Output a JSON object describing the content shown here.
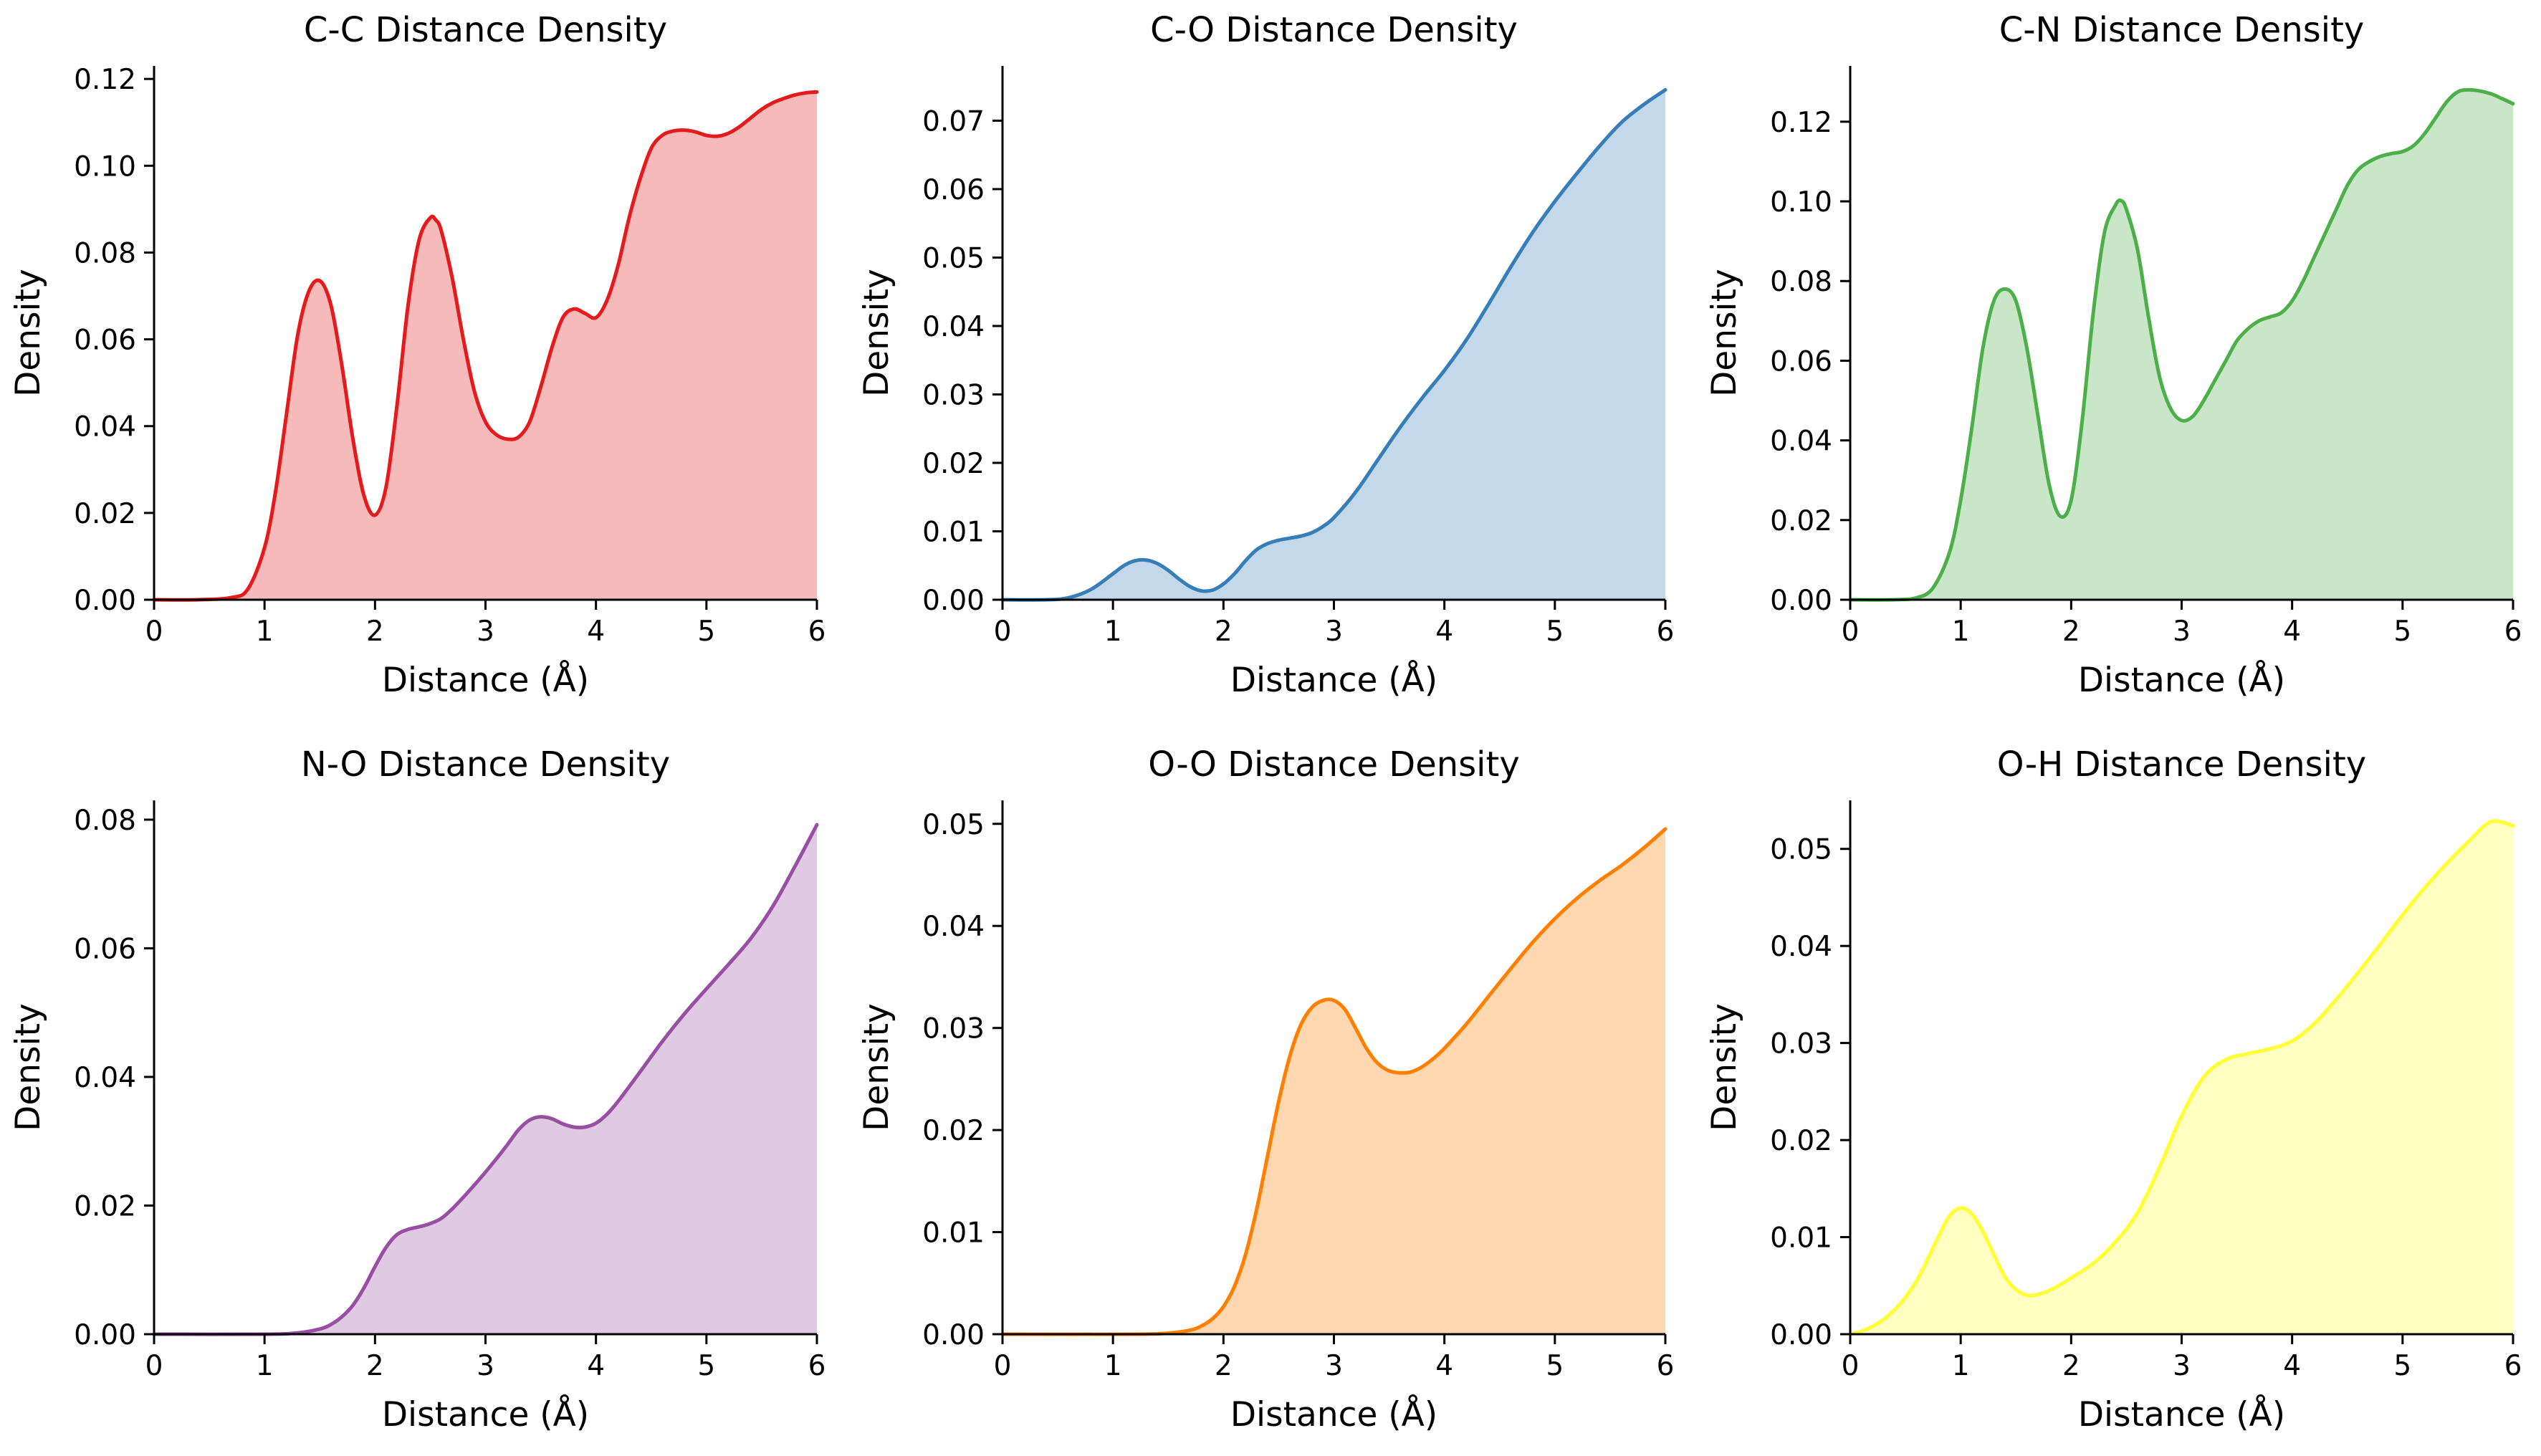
{
  "chart_data": [
    {
      "type": "area",
      "title": "C-C Distance Density",
      "xlabel": "Distance (Å)",
      "ylabel": "Density",
      "xlim": [
        0,
        6
      ],
      "ylim": [
        0,
        0.123
      ],
      "xticks": [
        "0",
        "1",
        "2",
        "3",
        "4",
        "5",
        "6"
      ],
      "yticks": [
        "0.00",
        "0.02",
        "0.04",
        "0.06",
        "0.08",
        "0.10",
        "0.12"
      ],
      "color": "#e41a1c",
      "x": [
        0,
        0.4,
        0.7,
        0.85,
        1.0,
        1.1,
        1.2,
        1.3,
        1.4,
        1.5,
        1.6,
        1.7,
        1.8,
        1.9,
        2.0,
        2.1,
        2.2,
        2.3,
        2.4,
        2.5,
        2.55,
        2.6,
        2.7,
        2.8,
        2.9,
        3.0,
        3.1,
        3.2,
        3.3,
        3.4,
        3.5,
        3.6,
        3.7,
        3.8,
        3.9,
        4.0,
        4.1,
        4.2,
        4.3,
        4.4,
        4.5,
        4.6,
        4.7,
        4.8,
        4.9,
        5.0,
        5.1,
        5.2,
        5.3,
        5.4,
        5.5,
        5.6,
        5.7,
        5.8,
        5.9,
        6.0
      ],
      "y": [
        0,
        0,
        0.0005,
        0.0025,
        0.012,
        0.025,
        0.043,
        0.061,
        0.071,
        0.0735,
        0.068,
        0.054,
        0.037,
        0.024,
        0.0195,
        0.026,
        0.045,
        0.068,
        0.083,
        0.088,
        0.0875,
        0.085,
        0.074,
        0.06,
        0.048,
        0.041,
        0.038,
        0.037,
        0.0375,
        0.041,
        0.049,
        0.058,
        0.065,
        0.067,
        0.066,
        0.065,
        0.069,
        0.077,
        0.088,
        0.097,
        0.104,
        0.107,
        0.108,
        0.1082,
        0.1078,
        0.107,
        0.1068,
        0.1075,
        0.109,
        0.111,
        0.113,
        0.1145,
        0.1155,
        0.1163,
        0.1168,
        0.117
      ]
    },
    {
      "type": "area",
      "title": "C-O Distance Density",
      "xlabel": "Distance (Å)",
      "ylabel": "Density",
      "xlim": [
        0,
        6
      ],
      "ylim": [
        0,
        0.078
      ],
      "xticks": [
        "0",
        "1",
        "2",
        "3",
        "4",
        "5",
        "6"
      ],
      "yticks": [
        "0.00",
        "0.01",
        "0.02",
        "0.03",
        "0.04",
        "0.05",
        "0.06",
        "0.07"
      ],
      "color": "#377eb8",
      "x": [
        0,
        0.4,
        0.6,
        0.8,
        1.0,
        1.1,
        1.2,
        1.3,
        1.4,
        1.5,
        1.6,
        1.7,
        1.8,
        1.9,
        2.0,
        2.1,
        2.2,
        2.3,
        2.4,
        2.5,
        2.6,
        2.7,
        2.8,
        2.9,
        3.0,
        3.2,
        3.4,
        3.6,
        3.8,
        4.0,
        4.2,
        4.4,
        4.6,
        4.8,
        5.0,
        5.2,
        5.4,
        5.6,
        5.8,
        6.0
      ],
      "y": [
        0,
        0,
        0.0003,
        0.0015,
        0.0038,
        0.005,
        0.0057,
        0.0058,
        0.0053,
        0.0043,
        0.003,
        0.0019,
        0.0013,
        0.0014,
        0.0023,
        0.0038,
        0.0057,
        0.0073,
        0.0082,
        0.0087,
        0.009,
        0.0093,
        0.0098,
        0.0107,
        0.012,
        0.0158,
        0.0205,
        0.0252,
        0.0295,
        0.0335,
        0.038,
        0.0432,
        0.0486,
        0.0537,
        0.0582,
        0.0623,
        0.0662,
        0.0697,
        0.0723,
        0.0745
      ]
    },
    {
      "type": "area",
      "title": "C-N Distance Density",
      "xlabel": "Distance (Å)",
      "ylabel": "Density",
      "xlim": [
        0,
        6
      ],
      "ylim": [
        0,
        0.134
      ],
      "xticks": [
        "0",
        "1",
        "2",
        "3",
        "4",
        "5",
        "6"
      ],
      "yticks": [
        "0.00",
        "0.02",
        "0.04",
        "0.06",
        "0.08",
        "0.10",
        "0.12"
      ],
      "color": "#4daf4a",
      "x": [
        0,
        0.4,
        0.6,
        0.75,
        0.9,
        1.0,
        1.1,
        1.2,
        1.3,
        1.4,
        1.5,
        1.6,
        1.7,
        1.8,
        1.9,
        2.0,
        2.1,
        2.2,
        2.3,
        2.4,
        2.45,
        2.5,
        2.6,
        2.7,
        2.8,
        2.9,
        3.0,
        3.1,
        3.2,
        3.3,
        3.4,
        3.5,
        3.6,
        3.7,
        3.8,
        3.9,
        4.0,
        4.1,
        4.2,
        4.3,
        4.4,
        4.5,
        4.6,
        4.7,
        4.8,
        4.9,
        5.0,
        5.1,
        5.2,
        5.3,
        5.4,
        5.5,
        5.6,
        5.7,
        5.8,
        5.9,
        6.0
      ],
      "y": [
        0,
        0,
        0.0005,
        0.003,
        0.012,
        0.025,
        0.043,
        0.063,
        0.075,
        0.078,
        0.075,
        0.063,
        0.046,
        0.029,
        0.021,
        0.025,
        0.045,
        0.072,
        0.092,
        0.099,
        0.1002,
        0.098,
        0.088,
        0.071,
        0.056,
        0.048,
        0.045,
        0.046,
        0.05,
        0.055,
        0.06,
        0.065,
        0.068,
        0.07,
        0.071,
        0.072,
        0.075,
        0.08,
        0.086,
        0.092,
        0.098,
        0.104,
        0.108,
        0.11,
        0.1113,
        0.112,
        0.1125,
        0.114,
        0.117,
        0.121,
        0.125,
        0.1275,
        0.128,
        0.1277,
        0.127,
        0.1258,
        0.1245
      ]
    },
    {
      "type": "area",
      "title": "N-O Distance Density",
      "xlabel": "Distance (Å)",
      "ylabel": "Density",
      "xlim": [
        0,
        6
      ],
      "ylim": [
        0,
        0.083
      ],
      "xticks": [
        "0",
        "1",
        "2",
        "3",
        "4",
        "5",
        "6"
      ],
      "yticks": [
        "0.00",
        "0.02",
        "0.04",
        "0.06",
        "0.08"
      ],
      "color": "#984ea3",
      "x": [
        0,
        1.0,
        1.3,
        1.5,
        1.6,
        1.7,
        1.8,
        1.9,
        2.0,
        2.1,
        2.2,
        2.3,
        2.4,
        2.5,
        2.6,
        2.7,
        2.8,
        2.9,
        3.0,
        3.1,
        3.2,
        3.3,
        3.4,
        3.5,
        3.6,
        3.7,
        3.8,
        3.9,
        4.0,
        4.1,
        4.2,
        4.4,
        4.6,
        4.8,
        5.0,
        5.2,
        5.4,
        5.6,
        5.8,
        6.0
      ],
      "y": [
        0,
        0,
        0.0002,
        0.0008,
        0.0015,
        0.0027,
        0.0045,
        0.0072,
        0.0105,
        0.0135,
        0.0155,
        0.0163,
        0.0167,
        0.0172,
        0.018,
        0.0195,
        0.0213,
        0.0232,
        0.0252,
        0.0273,
        0.0295,
        0.0318,
        0.0333,
        0.0338,
        0.0335,
        0.0327,
        0.0322,
        0.0322,
        0.0328,
        0.0342,
        0.0362,
        0.0408,
        0.0455,
        0.0498,
        0.0537,
        0.0575,
        0.0615,
        0.0665,
        0.0727,
        0.0792
      ]
    },
    {
      "type": "area",
      "title": "O-O Distance Density",
      "xlabel": "Distance (Å)",
      "ylabel": "Density",
      "xlim": [
        0,
        6
      ],
      "ylim": [
        0,
        0.0523
      ],
      "xticks": [
        "0",
        "1",
        "2",
        "3",
        "4",
        "5",
        "6"
      ],
      "yticks": [
        "0.00",
        "0.01",
        "0.02",
        "0.03",
        "0.04",
        "0.05"
      ],
      "color": "#ff7f00",
      "x": [
        0,
        1.2,
        1.5,
        1.7,
        1.8,
        1.9,
        2.0,
        2.1,
        2.2,
        2.3,
        2.4,
        2.5,
        2.6,
        2.7,
        2.8,
        2.9,
        3.0,
        3.1,
        3.2,
        3.3,
        3.4,
        3.5,
        3.6,
        3.7,
        3.8,
        3.9,
        4.0,
        4.2,
        4.4,
        4.6,
        4.8,
        5.0,
        5.2,
        5.4,
        5.6,
        5.8,
        6.0
      ],
      "y": [
        0,
        0,
        0.0001,
        0.0004,
        0.0008,
        0.0015,
        0.0027,
        0.0047,
        0.0078,
        0.0122,
        0.0175,
        0.0228,
        0.0272,
        0.0303,
        0.032,
        0.0327,
        0.0327,
        0.0318,
        0.0299,
        0.0279,
        0.0265,
        0.0258,
        0.0256,
        0.0257,
        0.0262,
        0.027,
        0.028,
        0.0304,
        0.0331,
        0.0358,
        0.0384,
        0.0407,
        0.0427,
        0.0444,
        0.0459,
        0.0476,
        0.0495
      ]
    },
    {
      "type": "area",
      "title": "O-H Distance Density",
      "xlabel": "Distance (Å)",
      "ylabel": "Density",
      "xlim": [
        0,
        6
      ],
      "ylim": [
        0,
        0.055
      ],
      "xticks": [
        "0",
        "1",
        "2",
        "3",
        "4",
        "5",
        "6"
      ],
      "yticks": [
        "0.00",
        "0.01",
        "0.02",
        "0.03",
        "0.04",
        "0.05"
      ],
      "color": "#ffff33",
      "x": [
        0,
        0.1,
        0.2,
        0.3,
        0.4,
        0.5,
        0.6,
        0.7,
        0.8,
        0.9,
        1.0,
        1.1,
        1.2,
        1.3,
        1.4,
        1.5,
        1.6,
        1.7,
        1.8,
        1.9,
        2.0,
        2.2,
        2.4,
        2.6,
        2.8,
        3.0,
        3.2,
        3.4,
        3.6,
        3.8,
        4.0,
        4.2,
        4.4,
        4.6,
        4.8,
        5.0,
        5.2,
        5.4,
        5.6,
        5.8,
        6.0
      ],
      "y": [
        0,
        0.0003,
        0.0008,
        0.0015,
        0.0025,
        0.0038,
        0.0055,
        0.0077,
        0.0101,
        0.0122,
        0.013,
        0.0124,
        0.0106,
        0.0082,
        0.0059,
        0.0046,
        0.004,
        0.0041,
        0.0045,
        0.0051,
        0.0058,
        0.0073,
        0.0095,
        0.0125,
        0.0172,
        0.0225,
        0.0265,
        0.0283,
        0.0289,
        0.0294,
        0.0302,
        0.032,
        0.0345,
        0.0373,
        0.0402,
        0.0432,
        0.046,
        0.0485,
        0.0508,
        0.0528,
        0.0524
      ]
    }
  ]
}
